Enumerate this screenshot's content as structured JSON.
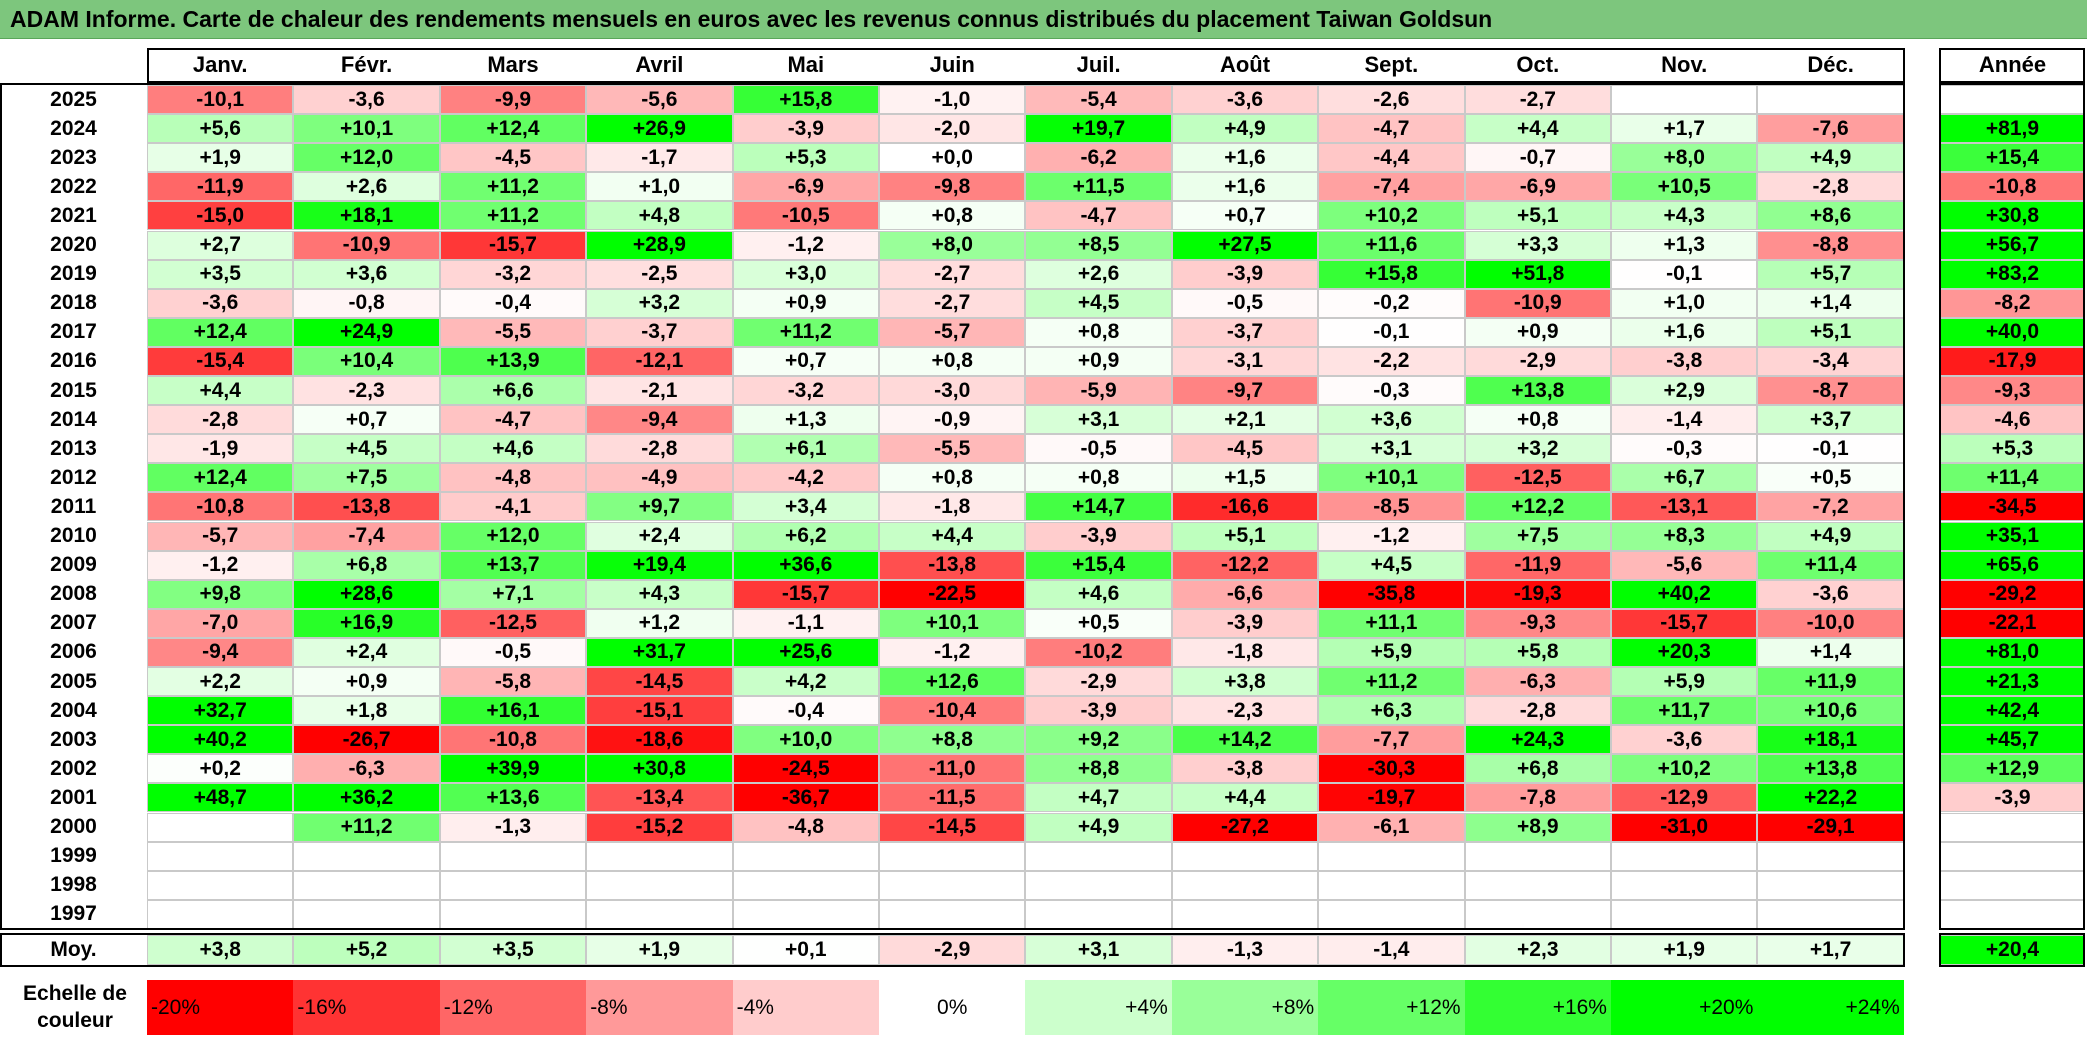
{
  "title": "ADAM Informe. Carte de chaleur des rendements mensuels en euros avec les revenus connus distribués du placement Taiwan Goldsun",
  "colors": {
    "negative_max": "#ff0000",
    "neutral": "#ffffff",
    "positive_max": "#00ff00",
    "title_background": "#7dc67d"
  },
  "chart_data": {
    "type": "heatmap",
    "title": "ADAM Informe. Carte de chaleur des rendements mensuels en euros avec les revenus connus distribués du placement Taiwan Goldsun",
    "x_categories": [
      "Janv.",
      "Févr.",
      "Mars",
      "Avril",
      "Mai",
      "Juin",
      "Juil.",
      "Août",
      "Sept.",
      "Oct.",
      "Nov.",
      "Déc."
    ],
    "year_column_label": "Année",
    "years": [
      "2025",
      "2024",
      "2023",
      "2022",
      "2021",
      "2020",
      "2019",
      "2018",
      "2017",
      "2016",
      "2015",
      "2014",
      "2013",
      "2012",
      "2011",
      "2010",
      "2009",
      "2008",
      "2007",
      "2006",
      "2005",
      "2004",
      "2003",
      "2002",
      "2001",
      "2000",
      "1999",
      "1998",
      "1997"
    ],
    "monthly": [
      [
        "-10,1",
        "-3,6",
        "-9,9",
        "-5,6",
        "+15,8",
        "-1,0",
        "-5,4",
        "-3,6",
        "-2,6",
        "-2,7",
        "",
        ""
      ],
      [
        "+5,6",
        "+10,1",
        "+12,4",
        "+26,9",
        "-3,9",
        "-2,0",
        "+19,7",
        "+4,9",
        "-4,7",
        "+4,4",
        "+1,7",
        "-7,6"
      ],
      [
        "+1,9",
        "+12,0",
        "-4,5",
        "-1,7",
        "+5,3",
        "+0,0",
        "-6,2",
        "+1,6",
        "-4,4",
        "-0,7",
        "+8,0",
        "+4,9"
      ],
      [
        "-11,9",
        "+2,6",
        "+11,2",
        "+1,0",
        "-6,9",
        "-9,8",
        "+11,5",
        "+1,6",
        "-7,4",
        "-6,9",
        "+10,5",
        "-2,8"
      ],
      [
        "-15,0",
        "+18,1",
        "+11,2",
        "+4,8",
        "-10,5",
        "+0,8",
        "-4,7",
        "+0,7",
        "+10,2",
        "+5,1",
        "+4,3",
        "+8,6"
      ],
      [
        "+2,7",
        "-10,9",
        "-15,7",
        "+28,9",
        "-1,2",
        "+8,0",
        "+8,5",
        "+27,5",
        "+11,6",
        "+3,3",
        "+1,3",
        "-8,8"
      ],
      [
        "+3,5",
        "+3,6",
        "-3,2",
        "-2,5",
        "+3,0",
        "-2,7",
        "+2,6",
        "-3,9",
        "+15,8",
        "+51,8",
        "-0,1",
        "+5,7"
      ],
      [
        "-3,6",
        "-0,8",
        "-0,4",
        "+3,2",
        "+0,9",
        "-2,7",
        "+4,5",
        "-0,5",
        "-0,2",
        "-10,9",
        "+1,0",
        "+1,4"
      ],
      [
        "+12,4",
        "+24,9",
        "-5,5",
        "-3,7",
        "+11,2",
        "-5,7",
        "+0,8",
        "-3,7",
        "-0,1",
        "+0,9",
        "+1,6",
        "+5,1"
      ],
      [
        "-15,4",
        "+10,4",
        "+13,9",
        "-12,1",
        "+0,7",
        "+0,8",
        "+0,9",
        "-3,1",
        "-2,2",
        "-2,9",
        "-3,8",
        "-3,4"
      ],
      [
        "+4,4",
        "-2,3",
        "+6,6",
        "-2,1",
        "-3,2",
        "-3,0",
        "-5,9",
        "-9,7",
        "-0,3",
        "+13,8",
        "+2,9",
        "-8,7"
      ],
      [
        "-2,8",
        "+0,7",
        "-4,7",
        "-9,4",
        "+1,3",
        "-0,9",
        "+3,1",
        "+2,1",
        "+3,6",
        "+0,8",
        "-1,4",
        "+3,7"
      ],
      [
        "-1,9",
        "+4,5",
        "+4,6",
        "-2,8",
        "+6,1",
        "-5,5",
        "-0,5",
        "-4,5",
        "+3,1",
        "+3,2",
        "-0,3",
        "-0,1"
      ],
      [
        "+12,4",
        "+7,5",
        "-4,8",
        "-4,9",
        "-4,2",
        "+0,8",
        "+0,8",
        "+1,5",
        "+10,1",
        "-12,5",
        "+6,7",
        "+0,5"
      ],
      [
        "-10,8",
        "-13,8",
        "-4,1",
        "+9,7",
        "+3,4",
        "-1,8",
        "+14,7",
        "-16,6",
        "-8,5",
        "+12,2",
        "-13,1",
        "-7,2"
      ],
      [
        "-5,7",
        "-7,4",
        "+12,0",
        "+2,4",
        "+6,2",
        "+4,4",
        "-3,9",
        "+5,1",
        "-1,2",
        "+7,5",
        "+8,3",
        "+4,9"
      ],
      [
        "-1,2",
        "+6,8",
        "+13,7",
        "+19,4",
        "+36,6",
        "-13,8",
        "+15,4",
        "-12,2",
        "+4,5",
        "-11,9",
        "-5,6",
        "+11,4"
      ],
      [
        "+9,8",
        "+28,6",
        "+7,1",
        "+4,3",
        "-15,7",
        "-22,5",
        "+4,6",
        "-6,6",
        "-35,8",
        "-19,3",
        "+40,2",
        "-3,6"
      ],
      [
        "-7,0",
        "+16,9",
        "-12,5",
        "+1,2",
        "-1,1",
        "+10,1",
        "+0,5",
        "-3,9",
        "+11,1",
        "-9,3",
        "-15,7",
        "-10,0"
      ],
      [
        "-9,4",
        "+2,4",
        "-0,5",
        "+31,7",
        "+25,6",
        "-1,2",
        "-10,2",
        "-1,8",
        "+5,9",
        "+5,8",
        "+20,3",
        "+1,4"
      ],
      [
        "+2,2",
        "+0,9",
        "-5,8",
        "-14,5",
        "+4,2",
        "+12,6",
        "-2,9",
        "+3,8",
        "+11,2",
        "-6,3",
        "+5,9",
        "+11,9"
      ],
      [
        "+32,7",
        "+1,8",
        "+16,1",
        "-15,1",
        "-0,4",
        "-10,4",
        "-3,9",
        "-2,3",
        "+6,3",
        "-2,8",
        "+11,7",
        "+10,6"
      ],
      [
        "+40,2",
        "-26,7",
        "-10,8",
        "-18,6",
        "+10,0",
        "+8,8",
        "+9,2",
        "+14,2",
        "-7,7",
        "+24,3",
        "-3,6",
        "+18,1"
      ],
      [
        "+0,2",
        "-6,3",
        "+39,9",
        "+30,8",
        "-24,5",
        "-11,0",
        "+8,8",
        "-3,8",
        "-30,3",
        "+6,8",
        "+10,2",
        "+13,8"
      ],
      [
        "+48,7",
        "+36,2",
        "+13,6",
        "-13,4",
        "-36,7",
        "-11,5",
        "+4,7",
        "+4,4",
        "-19,7",
        "-7,8",
        "-12,9",
        "+22,2"
      ],
      [
        "",
        "+11,2",
        "-1,3",
        "-15,2",
        "-4,8",
        "-14,5",
        "+4,9",
        "-27,2",
        "-6,1",
        "+8,9",
        "-31,0",
        "-29,1"
      ],
      [
        "",
        "",
        "",
        "",
        "",
        "",
        "",
        "",
        "",
        "",
        "",
        ""
      ],
      [
        "",
        "",
        "",
        "",
        "",
        "",
        "",
        "",
        "",
        "",
        "",
        ""
      ],
      [
        "",
        "",
        "",
        "",
        "",
        "",
        "",
        "",
        "",
        "",
        "",
        ""
      ]
    ],
    "annual": [
      "",
      "+81,9",
      "+15,4",
      "-10,8",
      "+30,8",
      "+56,7",
      "+83,2",
      "-8,2",
      "+40,0",
      "-17,9",
      "-9,3",
      "-4,6",
      "+5,3",
      "+11,4",
      "-34,5",
      "+35,1",
      "+65,6",
      "-29,2",
      "-22,1",
      "+81,0",
      "+21,3",
      "+42,4",
      "+45,7",
      "+12,9",
      "-3,9",
      "",
      "",
      "",
      ""
    ],
    "average_label": "Moy.",
    "average": [
      "+3,8",
      "+5,2",
      "+3,5",
      "+1,9",
      "+0,1",
      "-2,9",
      "+3,1",
      "-1,3",
      "-1,4",
      "+2,3",
      "+1,9",
      "+1,7"
    ],
    "average_annual": "+20,4",
    "color_scale": {
      "label": "Echelle de couleur",
      "stops": [
        "-20%",
        "-16%",
        "-12%",
        "-8%",
        "-4%",
        "0%",
        "+4%",
        "+8%",
        "+12%",
        "+16%",
        "+20%",
        "+24%"
      ],
      "values": [
        -20,
        -16,
        -12,
        -8,
        -4,
        0,
        4,
        8,
        12,
        16,
        20,
        24
      ]
    }
  }
}
